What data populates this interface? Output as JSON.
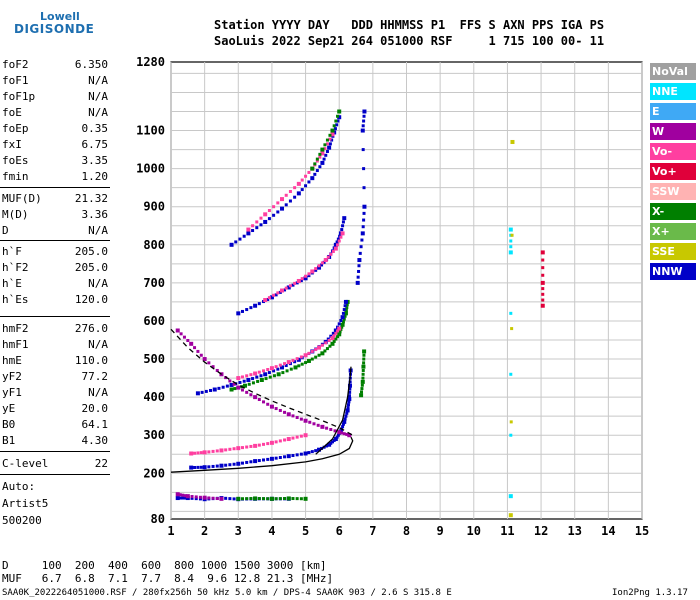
{
  "logo": {
    "top": "Lowell",
    "bottom": "DIGISONDE"
  },
  "header": {
    "line1": "Station YYYY DAY   DDD HHMMSS P1  FFS S AXN PPS IGA PS",
    "line2": "SaoLuis 2022 Sep21 264 051000 RSF     1 715 100 00- 11"
  },
  "params": [
    {
      "name": "foF2",
      "value": "6.350"
    },
    {
      "name": "foF1",
      "value": "N/A"
    },
    {
      "name": "foF1p",
      "value": "N/A"
    },
    {
      "name": "foE",
      "value": "N/A"
    },
    {
      "name": "foEp",
      "value": "0.35"
    },
    {
      "name": "fxI",
      "value": "6.75"
    },
    {
      "name": "foEs",
      "value": "3.35"
    },
    {
      "name": "fmin",
      "value": "1.20"
    },
    {
      "name": "MUF(D)",
      "value": "21.32"
    },
    {
      "name": "M(D)",
      "value": "3.36"
    },
    {
      "name": "D",
      "value": "N/A"
    },
    {
      "name": "h`F",
      "value": "205.0"
    },
    {
      "name": "h`F2",
      "value": "205.0"
    },
    {
      "name": "h`E",
      "value": "N/A"
    },
    {
      "name": "h`Es",
      "value": "120.0"
    },
    {
      "name": "hmF2",
      "value": "276.0"
    },
    {
      "name": "hmF1",
      "value": "N/A"
    },
    {
      "name": "hmE",
      "value": "110.0"
    },
    {
      "name": "yF2",
      "value": "77.2"
    },
    {
      "name": "yF1",
      "value": "N/A"
    },
    {
      "name": "yE",
      "value": "20.0"
    },
    {
      "name": "B0",
      "value": "64.1"
    },
    {
      "name": "B1",
      "value": "4.30"
    },
    {
      "name": "C-level",
      "value": "22"
    }
  ],
  "auto": {
    "label": "Auto:",
    "artist": "Artist5",
    "code": "500200"
  },
  "legend": [
    {
      "label": "NoVal",
      "color": "#a0a0a0"
    },
    {
      "label": "NNE",
      "color": "#00e5ff"
    },
    {
      "label": "E",
      "color": "#3fa9f5"
    },
    {
      "label": "W",
      "color": "#a0009f"
    },
    {
      "label": "Vo-",
      "color": "#ff3fa0"
    },
    {
      "label": "Vo+",
      "color": "#e0003a"
    },
    {
      "label": "SSW",
      "color": "#ffb3b3"
    },
    {
      "label": "X-",
      "color": "#007f00"
    },
    {
      "label": "X+",
      "color": "#6aba4a"
    },
    {
      "label": "SSE",
      "color": "#c8c800"
    },
    {
      "label": "NNW",
      "color": "#0000c8"
    }
  ],
  "footer": {
    "d_row": "D     100  200  400  600  800 1000 1500 3000 [km]",
    "muf_row": "MUF   6.7  6.8  7.1  7.7  8.4  9.6 12.8 21.3 [MHz]",
    "file_info": "SAA0K_2022264051000.RSF / 280fx256h 50 kHz 5.0 km / DPS-4 SAA0K 903 / 2.6 S 315.8 E",
    "version": "Ion2Png 1.3.17"
  },
  "chart_data": {
    "type": "scatter",
    "xlim": [
      1,
      15
    ],
    "ylim": [
      80,
      1280
    ],
    "x_ticks": [
      1,
      2,
      3,
      4,
      5,
      6,
      7,
      8,
      9,
      10,
      11,
      12,
      13,
      14,
      15
    ],
    "y_ticks": [
      80,
      200,
      300,
      400,
      500,
      600,
      700,
      800,
      900,
      1000,
      1100,
      1280
    ],
    "grid": true,
    "traces": [
      {
        "name": "NNW",
        "color": "#0000c8",
        "points": [
          [
            1.6,
            215
          ],
          [
            2.0,
            216
          ],
          [
            2.5,
            220
          ],
          [
            3.0,
            225
          ],
          [
            3.5,
            232
          ],
          [
            4.0,
            238
          ],
          [
            4.5,
            245
          ],
          [
            5.0,
            252
          ],
          [
            5.4,
            262
          ],
          [
            5.7,
            275
          ],
          [
            5.9,
            290
          ],
          [
            6.05,
            310
          ],
          [
            6.15,
            335
          ],
          [
            6.25,
            365
          ],
          [
            6.3,
            395
          ],
          [
            6.32,
            430
          ],
          [
            6.34,
            470
          ]
        ]
      },
      {
        "name": "Vo-",
        "color": "#ff3fa0",
        "points": [
          [
            1.6,
            252
          ],
          [
            2.0,
            255
          ],
          [
            2.5,
            260
          ],
          [
            3.0,
            266
          ],
          [
            3.5,
            272
          ],
          [
            4.0,
            280
          ],
          [
            4.5,
            290
          ],
          [
            5.0,
            300
          ]
        ]
      },
      {
        "name": "X-",
        "color": "#007f00",
        "points": [
          [
            2.8,
            420
          ],
          [
            3.2,
            430
          ],
          [
            3.7,
            445
          ],
          [
            4.2,
            460
          ],
          [
            4.7,
            478
          ],
          [
            5.1,
            495
          ],
          [
            5.5,
            515
          ],
          [
            5.8,
            540
          ],
          [
            6.0,
            565
          ],
          [
            6.1,
            590
          ],
          [
            6.2,
            620
          ],
          [
            6.25,
            650
          ]
        ]
      },
      {
        "name": "NNW",
        "color": "#0000c8",
        "points": [
          [
            1.8,
            410
          ],
          [
            2.3,
            420
          ],
          [
            2.8,
            432
          ],
          [
            3.3,
            445
          ],
          [
            3.8,
            460
          ],
          [
            4.3,
            478
          ],
          [
            4.8,
            498
          ],
          [
            5.2,
            520
          ],
          [
            5.6,
            545
          ],
          [
            5.9,
            575
          ],
          [
            6.1,
            610
          ],
          [
            6.2,
            650
          ]
        ]
      },
      {
        "name": "Vo-",
        "color": "#ff3fa0",
        "points": [
          [
            3.0,
            450
          ],
          [
            3.5,
            462
          ],
          [
            4.0,
            476
          ],
          [
            4.5,
            492
          ],
          [
            5.0,
            510
          ],
          [
            5.4,
            530
          ],
          [
            5.8,
            555
          ],
          [
            6.0,
            580
          ]
        ]
      },
      {
        "name": "W",
        "color": "#a0009f",
        "points": [
          [
            1.2,
            575
          ],
          [
            1.6,
            540
          ],
          [
            2.0,
            500
          ],
          [
            2.5,
            460
          ],
          [
            3.0,
            425
          ],
          [
            3.5,
            400
          ],
          [
            4.0,
            375
          ],
          [
            4.5,
            355
          ],
          [
            5.0,
            338
          ],
          [
            5.5,
            322
          ],
          [
            6.0,
            308
          ],
          [
            6.3,
            300
          ]
        ]
      },
      {
        "name": "NNW",
        "color": "#0000c8",
        "points": [
          [
            3.0,
            620
          ],
          [
            3.5,
            640
          ],
          [
            4.0,
            662
          ],
          [
            4.5,
            688
          ],
          [
            5.0,
            712
          ],
          [
            5.4,
            740
          ],
          [
            5.7,
            768
          ],
          [
            5.9,
            800
          ],
          [
            6.05,
            830
          ],
          [
            6.15,
            870
          ]
        ]
      },
      {
        "name": "Vo-",
        "color": "#ff3fa0",
        "points": [
          [
            3.8,
            655
          ],
          [
            4.3,
            680
          ],
          [
            4.8,
            705
          ],
          [
            5.2,
            730
          ],
          [
            5.6,
            760
          ],
          [
            5.9,
            790
          ],
          [
            6.1,
            830
          ]
        ]
      },
      {
        "name": "NNW",
        "color": "#0000c8",
        "points": [
          [
            2.8,
            800
          ],
          [
            3.3,
            830
          ],
          [
            3.8,
            860
          ],
          [
            4.3,
            895
          ],
          [
            4.8,
            935
          ],
          [
            5.2,
            975
          ],
          [
            5.5,
            1015
          ],
          [
            5.7,
            1055
          ],
          [
            5.85,
            1095
          ],
          [
            6.0,
            1135
          ]
        ]
      },
      {
        "name": "Vo-",
        "color": "#ff3fa0",
        "points": [
          [
            3.3,
            840
          ],
          [
            3.8,
            880
          ],
          [
            4.3,
            920
          ],
          [
            4.8,
            960
          ],
          [
            5.2,
            1000
          ],
          [
            5.5,
            1040
          ],
          [
            5.8,
            1090
          ]
        ]
      },
      {
        "name": "X-",
        "color": "#007f00",
        "points": [
          [
            5.2,
            1000
          ],
          [
            5.5,
            1050
          ],
          [
            5.8,
            1100
          ],
          [
            6.0,
            1150
          ]
        ]
      },
      {
        "name": "NNW",
        "color": "#0000c8",
        "points": [
          [
            1.2,
            135
          ],
          [
            1.5,
            135
          ],
          [
            2.0,
            132
          ],
          [
            2.5,
            135
          ],
          [
            3.0,
            132
          ],
          [
            3.5,
            133
          ],
          [
            4.0,
            133
          ],
          [
            4.5,
            133
          ]
        ]
      },
      {
        "name": "X-",
        "color": "#007f00",
        "points": [
          [
            3.0,
            133
          ],
          [
            3.5,
            134
          ],
          [
            4.0,
            133
          ],
          [
            4.5,
            134
          ],
          [
            5.0,
            133
          ]
        ]
      },
      {
        "name": "W",
        "color": "#a0009f",
        "points": [
          [
            1.2,
            145
          ],
          [
            1.5,
            140
          ],
          [
            2.0,
            136
          ],
          [
            2.5,
            133
          ]
        ]
      },
      {
        "name": "X-",
        "color": "#007f00",
        "points": [
          [
            6.65,
            405
          ],
          [
            6.7,
            440
          ],
          [
            6.72,
            480
          ],
          [
            6.74,
            520
          ]
        ]
      },
      {
        "name": "NNW",
        "color": "#0000c8",
        "points": [
          [
            6.55,
            700
          ],
          [
            6.6,
            760
          ],
          [
            6.7,
            830
          ],
          [
            6.75,
            900
          ],
          [
            6.7,
            1100
          ],
          [
            6.75,
            1150
          ]
        ]
      },
      {
        "name": "Vo+",
        "color": "#e0003a",
        "points": [
          [
            12.05,
            640
          ],
          [
            12.05,
            700
          ],
          [
            12.05,
            780
          ]
        ]
      },
      {
        "name": "NNE",
        "color": "#00e5ff",
        "points": [
          [
            11.1,
            840
          ],
          [
            11.1,
            780
          ],
          [
            11.1,
            140
          ]
        ]
      },
      {
        "name": "SSE",
        "color": "#c8c800",
        "points": [
          [
            11.15,
            1070
          ],
          [
            11.1,
            90
          ]
        ]
      }
    ],
    "curves": [
      {
        "name": "profile",
        "style": "solid",
        "color": "#000000",
        "points": [
          [
            1.0,
            203
          ],
          [
            2.0,
            208
          ],
          [
            3.0,
            213
          ],
          [
            4.0,
            220
          ],
          [
            5.0,
            230
          ],
          [
            5.5,
            238
          ],
          [
            6.0,
            250
          ],
          [
            6.3,
            265
          ],
          [
            6.4,
            285
          ],
          [
            6.35,
            295
          ]
        ]
      },
      {
        "name": "profile-upper",
        "style": "solid",
        "color": "#000000",
        "points": [
          [
            5.3,
            250
          ],
          [
            5.8,
            290
          ],
          [
            6.1,
            340
          ],
          [
            6.25,
            400
          ],
          [
            6.32,
            450
          ],
          [
            6.35,
            480
          ]
        ]
      },
      {
        "name": "muf-curve",
        "style": "dashed",
        "color": "#000000",
        "points": [
          [
            1.0,
            578
          ],
          [
            1.5,
            530
          ],
          [
            2.0,
            492
          ],
          [
            2.5,
            460
          ],
          [
            3.0,
            432
          ],
          [
            3.5,
            410
          ],
          [
            4.0,
            390
          ],
          [
            4.5,
            372
          ],
          [
            5.0,
            355
          ],
          [
            5.5,
            338
          ],
          [
            6.0,
            320
          ],
          [
            6.4,
            300
          ]
        ]
      }
    ]
  }
}
